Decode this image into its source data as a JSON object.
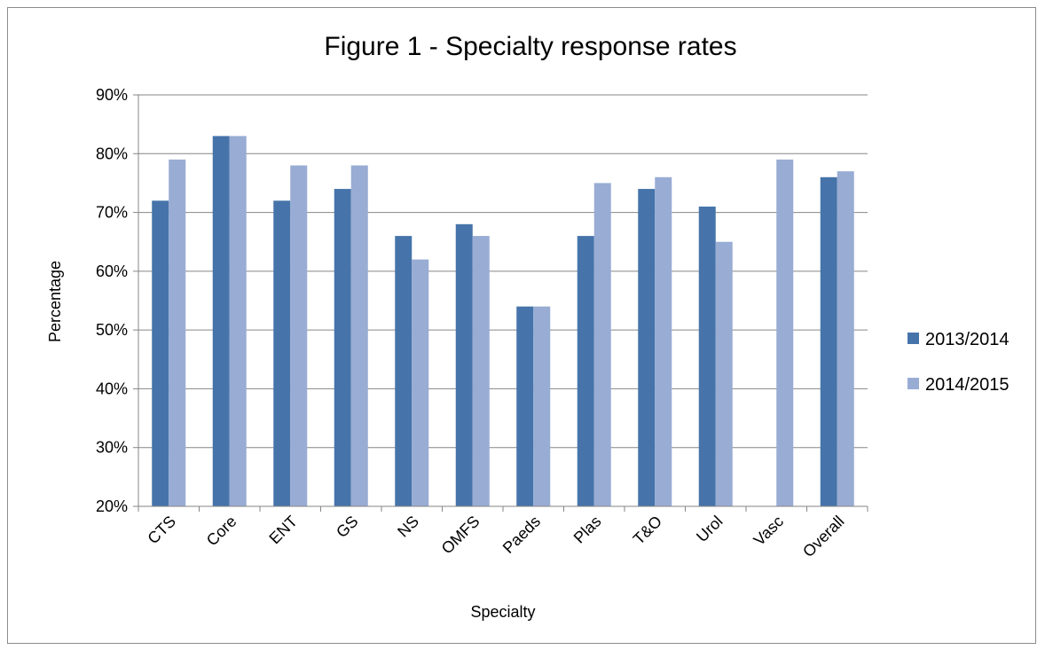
{
  "chart_data": {
    "type": "bar",
    "title": "Figure 1 - Specialty response rates",
    "xlabel": "Specialty",
    "ylabel": "Percentage",
    "ylim": [
      20,
      90
    ],
    "y_tick_step": 10,
    "y_tick_labels": [
      "20%",
      "30%",
      "40%",
      "50%",
      "60%",
      "70%",
      "80%",
      "90%"
    ],
    "grid": true,
    "legend_position": "right",
    "categories": [
      "CTS",
      "Core",
      "ENT",
      "GS",
      "NS",
      "OMFS",
      "Paeds",
      "Plas",
      "T&O",
      "Urol",
      "Vasc",
      "Overall"
    ],
    "series": [
      {
        "name": "2013/2014",
        "color": "#4674aa",
        "values": [
          72,
          83,
          72,
          74,
          66,
          68,
          54,
          66,
          74,
          71,
          null,
          76
        ]
      },
      {
        "name": "2014/2015",
        "color": "#98acd4",
        "values": [
          79,
          83,
          78,
          78,
          62,
          66,
          54,
          75,
          76,
          65,
          79,
          77
        ]
      }
    ]
  }
}
